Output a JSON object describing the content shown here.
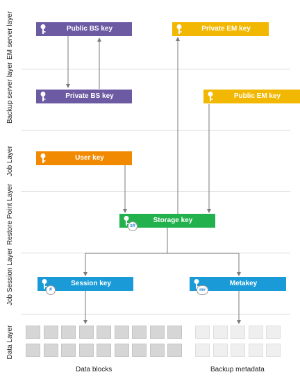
{
  "layers": [
    "EM server layer",
    "Backup server layer",
    "Job Layer",
    "Restore Point Layer",
    "Job Session Layer",
    "Data Layer"
  ],
  "keys": {
    "public_bs": {
      "label": "Public BS key",
      "color": "#6c5aa3"
    },
    "private_bs": {
      "label": "Private BS key",
      "color": "#6c5aa3"
    },
    "private_em": {
      "label": "Private EM key",
      "color": "#f2b700"
    },
    "public_em": {
      "label": "Public EM key",
      "color": "#f2b700"
    },
    "user": {
      "label": "User key",
      "color": "#f18a00"
    },
    "storage": {
      "label": "Storage key",
      "color": "#22b14c",
      "badge": "s#"
    },
    "session": {
      "label": "Session key",
      "color": "#1a9bd7",
      "badge": "#"
    },
    "metakey": {
      "label": "Metakey",
      "color": "#1a9bd7",
      "badge": "m#"
    }
  },
  "captions": {
    "data_blocks": "Data blocks",
    "backup_metadata": "Backup metadata"
  },
  "icons": {
    "key": "key-icon"
  },
  "colors": {
    "separator": "#d9d9d9",
    "arrow": "#7a7a7a",
    "block_dark": "#d6d6d6",
    "block_light": "#efefef"
  }
}
